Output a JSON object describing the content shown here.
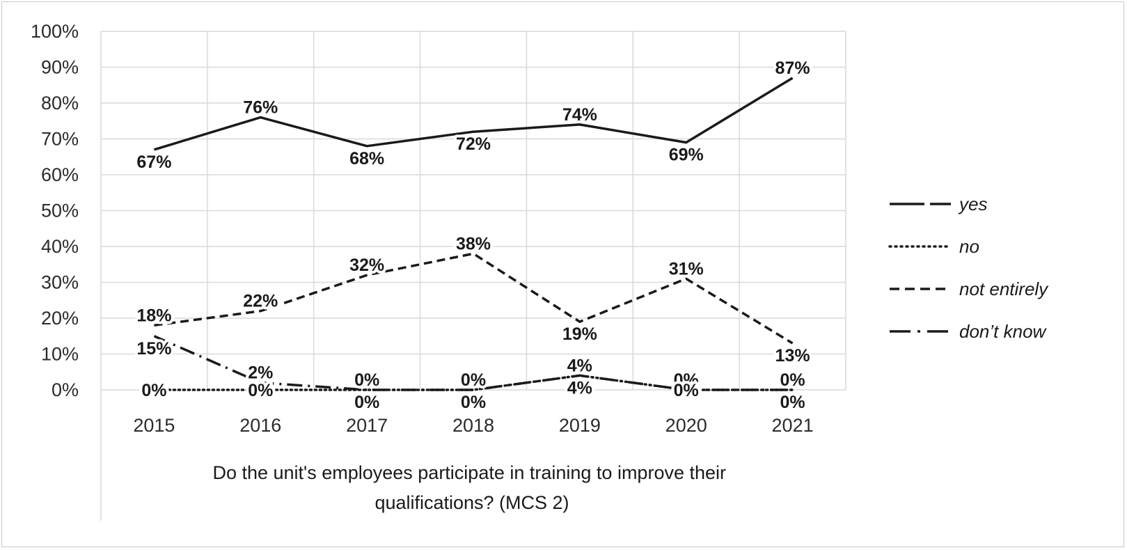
{
  "chart_data": {
    "type": "line",
    "categories": [
      "2015",
      "2016",
      "2017",
      "2018",
      "2019",
      "2020",
      "2021"
    ],
    "series": [
      {
        "name": "yes",
        "values": [
          67,
          76,
          68,
          72,
          74,
          69,
          87
        ],
        "dash": "solid"
      },
      {
        "name": "no",
        "values": [
          0,
          0,
          0,
          0,
          4,
          0,
          0
        ],
        "dash": "dotted"
      },
      {
        "name": "not entirely",
        "values": [
          18,
          22,
          32,
          38,
          19,
          31,
          13
        ],
        "dash": "dashed"
      },
      {
        "name": "don’t know",
        "values": [
          15,
          2,
          0,
          0,
          4,
          0,
          0
        ],
        "dash": "dashdot"
      }
    ],
    "y_ticks": [
      "0%",
      "10%",
      "20%",
      "30%",
      "40%",
      "50%",
      "60%",
      "70%",
      "80%",
      "90%",
      "100%"
    ],
    "ylim": [
      0,
      100
    ],
    "xlabel": "Do the unit's employees participate in training to improve their qualifications? (MCS 2)",
    "xlabel_lines": [
      "Do the unit's employees participate in training to improve their",
      "qualifications? (MCS 2)"
    ],
    "ylabel": "",
    "title": "",
    "grid": "vertical and horizontal",
    "legend": "right",
    "line_color": "#1a1a1a"
  }
}
